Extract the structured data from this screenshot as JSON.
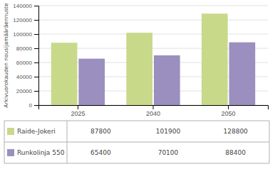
{
  "chart_data": {
    "type": "bar",
    "categories": [
      "2025",
      "2040",
      "2050"
    ],
    "series": [
      {
        "name": "Raide-Jokeri",
        "color": "#c8d98a",
        "values": [
          87800,
          101900,
          128800
        ]
      },
      {
        "name": "Runkolinja 550",
        "color": "#9b8fc0",
        "values": [
          65400,
          70100,
          88400
        ]
      }
    ],
    "ylabel": "Arkivuorokauden nousijamääräennuste",
    "ylim": [
      0,
      140000
    ],
    "yticks": [
      0,
      20000,
      40000,
      60000,
      80000,
      100000,
      120000,
      140000
    ],
    "grid": true
  }
}
